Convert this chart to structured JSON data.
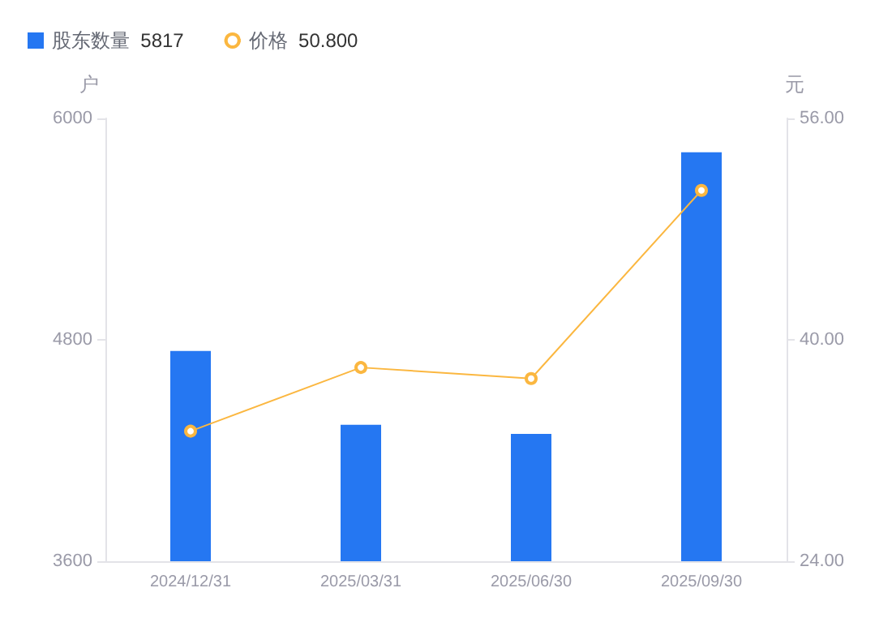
{
  "chart_data": {
    "type": "bar",
    "categories": [
      "2024/12/31",
      "2025/03/31",
      "2025/06/30",
      "2025/09/30"
    ],
    "ylabel": "户",
    "y2label": "元",
    "series": [
      {
        "name": "股东数量",
        "type": "bar",
        "color": "#2577f2",
        "values": [
          4740,
          4340,
          4290,
          5817
        ]
      },
      {
        "name": "价格",
        "type": "line",
        "axis": "y2",
        "color": "#fbb740",
        "values": [
          33.4,
          38.0,
          37.2,
          50.8
        ]
      }
    ],
    "annotations": [
      "5817",
      "50.800"
    ],
    "ylim": [
      3600,
      6000
    ],
    "yticks": [
      3600,
      4800,
      6000
    ],
    "y2lim": [
      24,
      56
    ],
    "y2ticks": [
      {
        "value": 24,
        "label": "24.00"
      },
      {
        "value": 40,
        "label": "40.00"
      },
      {
        "value": 56,
        "label": "56.00"
      }
    ],
    "grid": false,
    "legend": "top left",
    "marker": "circle"
  }
}
